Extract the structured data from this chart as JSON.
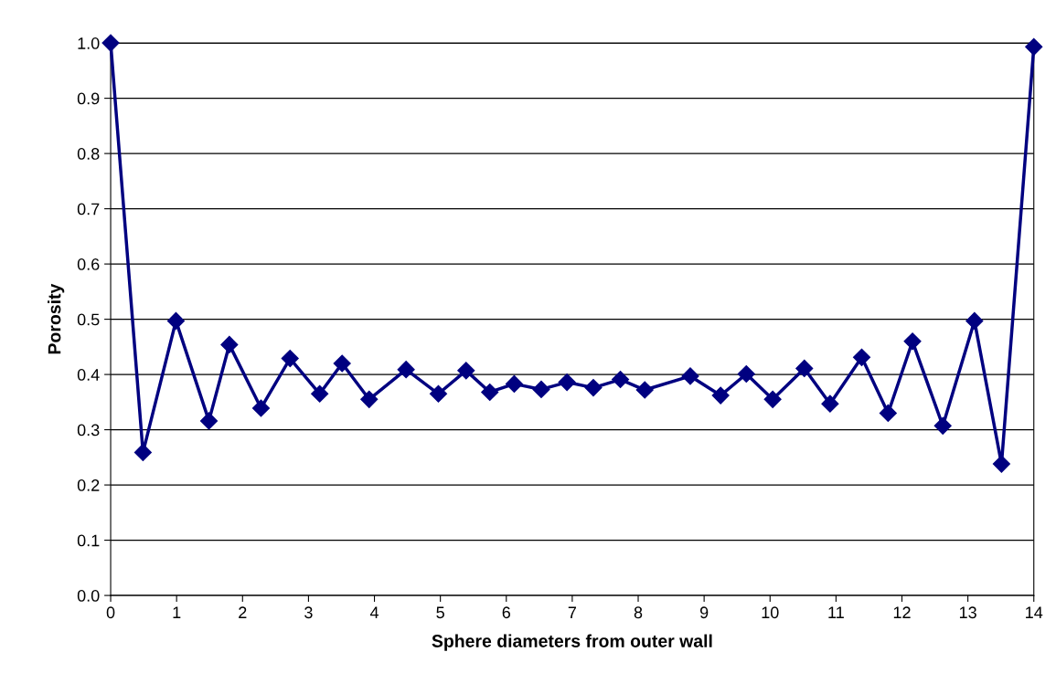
{
  "chart_data": {
    "type": "line",
    "xlabel": "Sphere diameters from outer wall",
    "ylabel": "Porosity",
    "x": [
      0,
      0.49,
      0.99,
      1.49,
      1.8,
      2.28,
      2.72,
      3.17,
      3.51,
      3.92,
      4.48,
      4.97,
      5.39,
      5.75,
      6.12,
      6.53,
      6.92,
      7.32,
      7.73,
      8.1,
      8.79,
      9.25,
      9.64,
      10.04,
      10.52,
      10.91,
      11.39,
      11.79,
      12.16,
      12.62,
      13.1,
      13.51,
      14
    ],
    "series": [
      {
        "color": "#000080",
        "values": [
          1.0,
          0.259,
          0.497,
          0.316,
          0.454,
          0.339,
          0.429,
          0.365,
          0.42,
          0.355,
          0.409,
          0.365,
          0.407,
          0.368,
          0.383,
          0.373,
          0.386,
          0.376,
          0.391,
          0.372,
          0.397,
          0.362,
          0.401,
          0.355,
          0.411,
          0.347,
          0.431,
          0.33,
          0.46,
          0.307,
          0.497,
          0.238,
          0.993
        ]
      }
    ],
    "xlim": [
      0,
      14
    ],
    "xticks": [
      0,
      1,
      2,
      3,
      4,
      5,
      6,
      7,
      8,
      9,
      10,
      11,
      12,
      13,
      14
    ],
    "ylim": [
      0,
      1
    ],
    "yticks": [
      {
        "value": 0,
        "label": "0.0"
      },
      0.1,
      0.2,
      0.3,
      0.4,
      0.5,
      0.6,
      0.7,
      0.8,
      0.9,
      {
        "value": 1,
        "label": "1.0"
      }
    ],
    "grid": "y",
    "marker": "diamond",
    "line_style": "solid"
  }
}
